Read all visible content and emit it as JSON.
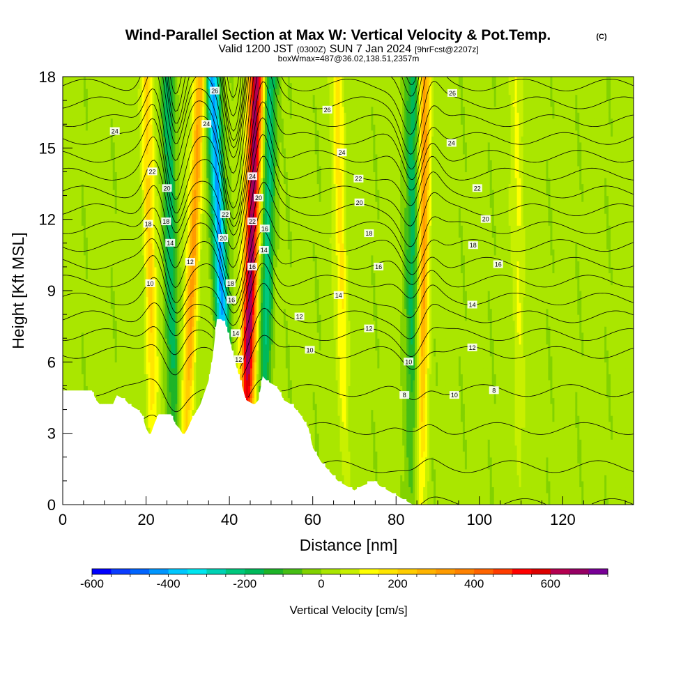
{
  "header": {
    "title": "Wind-Parallel Section at Max W: Vertical Velocity & Pot.Temp.",
    "copyright": "(C)",
    "valid_prefix": "Valid 1200 JST",
    "valid_utc": "(0300Z)",
    "valid_date": "SUN 7 Jan 2024",
    "forecast_info": "[9hrFcst@2207z]",
    "box_info": "boxWmax=487@36.02,138.51,2357m"
  },
  "chart_data": {
    "type": "heatmap",
    "title": "Wind-Parallel Section at Max W: Vertical Velocity & Pot.Temp.",
    "xlabel": "Distance [nm]",
    "ylabel": "Height [Kft MSL]",
    "xlim": [
      0,
      137
    ],
    "ylim": [
      0,
      18
    ],
    "x_ticks": [
      "0",
      "20",
      "40",
      "60",
      "80",
      "100",
      "120"
    ],
    "y_ticks": [
      "0",
      "3",
      "6",
      "9",
      "12",
      "15",
      "18"
    ],
    "colorbar": {
      "label": "Vertical Velocity [cm/s]",
      "ticks": [
        "-600",
        "-400",
        "-200",
        "0",
        "200",
        "400",
        "600"
      ],
      "range": [
        -600,
        750
      ],
      "step": 50,
      "colors": [
        "#0000ff",
        "#0a3cff",
        "#0064ff",
        "#0096ff",
        "#00c8ff",
        "#00e6f0",
        "#00d2b4",
        "#00c87d",
        "#00b95a",
        "#1eb428",
        "#46be14",
        "#82d200",
        "#aae600",
        "#c8f000",
        "#ffff00",
        "#ffe600",
        "#ffcd00",
        "#ffb400",
        "#ff9b00",
        "#ff8200",
        "#ff6400",
        "#ff3c00",
        "#ff0000",
        "#dc0000",
        "#b40050",
        "#960064",
        "#780096"
      ]
    },
    "updraft_bands": [
      {
        "x_base": 43.5,
        "x_top": 46.5,
        "peak_w": 650
      },
      {
        "x_base": 86,
        "x_top": 87,
        "peak_w": 300
      },
      {
        "x_base": 29,
        "x_top": 33,
        "peak_w": 300
      },
      {
        "x_base": 22,
        "x_top": 20,
        "peak_w": 200
      },
      {
        "x_base": 68,
        "x_top": 66,
        "peak_w": 150
      },
      {
        "x_base": 110,
        "x_top": 109,
        "peak_w": 100
      }
    ],
    "downdraft_bands": [
      {
        "x_base": 40,
        "x_top": 36,
        "peak_w": -450
      },
      {
        "x_base": 84,
        "x_top": 84,
        "peak_w": -200
      },
      {
        "x_base": 27,
        "x_top": 25,
        "peak_w": -200
      },
      {
        "x_base": 48,
        "x_top": 50,
        "peak_w": -250
      }
    ],
    "terrain_kft": [
      [
        0,
        4.8
      ],
      [
        7,
        4.8
      ],
      [
        8,
        4.4
      ],
      [
        9,
        4.2
      ],
      [
        12,
        4.2
      ],
      [
        13,
        4.6
      ],
      [
        15,
        4.4
      ],
      [
        16,
        4.2
      ],
      [
        18,
        4.0
      ],
      [
        19,
        3.8
      ],
      [
        20,
        3.2
      ],
      [
        21,
        2.9
      ],
      [
        22,
        3.4
      ],
      [
        23,
        3.8
      ],
      [
        26,
        3.8
      ],
      [
        27,
        3.4
      ],
      [
        28,
        3.2
      ],
      [
        29,
        2.9
      ],
      [
        30,
        3.2
      ],
      [
        31,
        3.6
      ],
      [
        33,
        4.2
      ],
      [
        35,
        5.2
      ],
      [
        36,
        6.2
      ],
      [
        37,
        7.8
      ],
      [
        38,
        7.8
      ],
      [
        39,
        7.6
      ],
      [
        40,
        7.0
      ],
      [
        41,
        6.2
      ],
      [
        42,
        5.6
      ],
      [
        43,
        5.0
      ],
      [
        44,
        4.4
      ],
      [
        46,
        4.2
      ],
      [
        47,
        4.4
      ],
      [
        48,
        5.4
      ],
      [
        49,
        5.2
      ],
      [
        51,
        5.0
      ],
      [
        52,
        4.8
      ],
      [
        53,
        4.4
      ],
      [
        55,
        4.2
      ],
      [
        57,
        3.8
      ],
      [
        59,
        3.2
      ],
      [
        60,
        2.4
      ],
      [
        62,
        1.8
      ],
      [
        64,
        1.4
      ],
      [
        66,
        1.0
      ],
      [
        68,
        0.8
      ],
      [
        70,
        0.6
      ],
      [
        72,
        0.8
      ],
      [
        75,
        1.0
      ],
      [
        76,
        0.8
      ],
      [
        78,
        0.6
      ],
      [
        80,
        0.4
      ],
      [
        82,
        0.2
      ],
      [
        84,
        0.0
      ],
      [
        137,
        0.0
      ]
    ],
    "theta_levels": [
      8,
      10,
      12,
      14,
      16,
      18,
      20,
      22,
      24,
      26
    ],
    "theta_labels": [
      {
        "text": "24",
        "x": 12.5,
        "y": 15.7
      },
      {
        "text": "26",
        "x": 36.5,
        "y": 17.4
      },
      {
        "text": "24",
        "x": 34.5,
        "y": 16.0
      },
      {
        "text": "22",
        "x": 21.5,
        "y": 14.0
      },
      {
        "text": "20",
        "x": 25,
        "y": 13.3
      },
      {
        "text": "18",
        "x": 20.5,
        "y": 11.8
      },
      {
        "text": "18",
        "x": 24.8,
        "y": 11.9
      },
      {
        "text": "14",
        "x": 25.8,
        "y": 11.0
      },
      {
        "text": "12",
        "x": 30.6,
        "y": 10.2
      },
      {
        "text": "10",
        "x": 21,
        "y": 9.3
      },
      {
        "text": "22",
        "x": 39,
        "y": 12.2
      },
      {
        "text": "20",
        "x": 38.5,
        "y": 11.2
      },
      {
        "text": "18",
        "x": 40.3,
        "y": 9.3
      },
      {
        "text": "16",
        "x": 40.5,
        "y": 8.6
      },
      {
        "text": "14",
        "x": 41.5,
        "y": 7.2
      },
      {
        "text": "12",
        "x": 42.2,
        "y": 6.1
      },
      {
        "text": "24",
        "x": 45.5,
        "y": 13.8
      },
      {
        "text": "20",
        "x": 47,
        "y": 12.9
      },
      {
        "text": "22",
        "x": 45.5,
        "y": 11.9
      },
      {
        "text": "16",
        "x": 48.5,
        "y": 11.6
      },
      {
        "text": "14",
        "x": 48.3,
        "y": 10.7
      },
      {
        "text": "16",
        "x": 45.5,
        "y": 10.0
      },
      {
        "text": "26",
        "x": 63.5,
        "y": 16.6
      },
      {
        "text": "24",
        "x": 67,
        "y": 14.8
      },
      {
        "text": "22",
        "x": 71,
        "y": 13.7
      },
      {
        "text": "20",
        "x": 71.2,
        "y": 12.7
      },
      {
        "text": "18",
        "x": 73.5,
        "y": 11.4
      },
      {
        "text": "16",
        "x": 75.8,
        "y": 10.0
      },
      {
        "text": "14",
        "x": 66.2,
        "y": 8.8
      },
      {
        "text": "12",
        "x": 56.8,
        "y": 7.9
      },
      {
        "text": "12",
        "x": 73.5,
        "y": 7.4
      },
      {
        "text": "10",
        "x": 59.3,
        "y": 6.5
      },
      {
        "text": "10",
        "x": 83,
        "y": 6.0
      },
      {
        "text": "8",
        "x": 82,
        "y": 4.6
      },
      {
        "text": "26",
        "x": 93.5,
        "y": 17.3
      },
      {
        "text": "24",
        "x": 93.3,
        "y": 15.2
      },
      {
        "text": "22",
        "x": 99.5,
        "y": 13.3
      },
      {
        "text": "20",
        "x": 101.5,
        "y": 12.0
      },
      {
        "text": "18",
        "x": 98.5,
        "y": 10.9
      },
      {
        "text": "16",
        "x": 104.5,
        "y": 10.1
      },
      {
        "text": "14",
        "x": 98.3,
        "y": 8.4
      },
      {
        "text": "12",
        "x": 98.3,
        "y": 6.6
      },
      {
        "text": "10",
        "x": 94,
        "y": 4.6
      },
      {
        "text": "8",
        "x": 103.5,
        "y": 4.8
      }
    ],
    "grid": false,
    "legend": "bottom colorbar"
  }
}
